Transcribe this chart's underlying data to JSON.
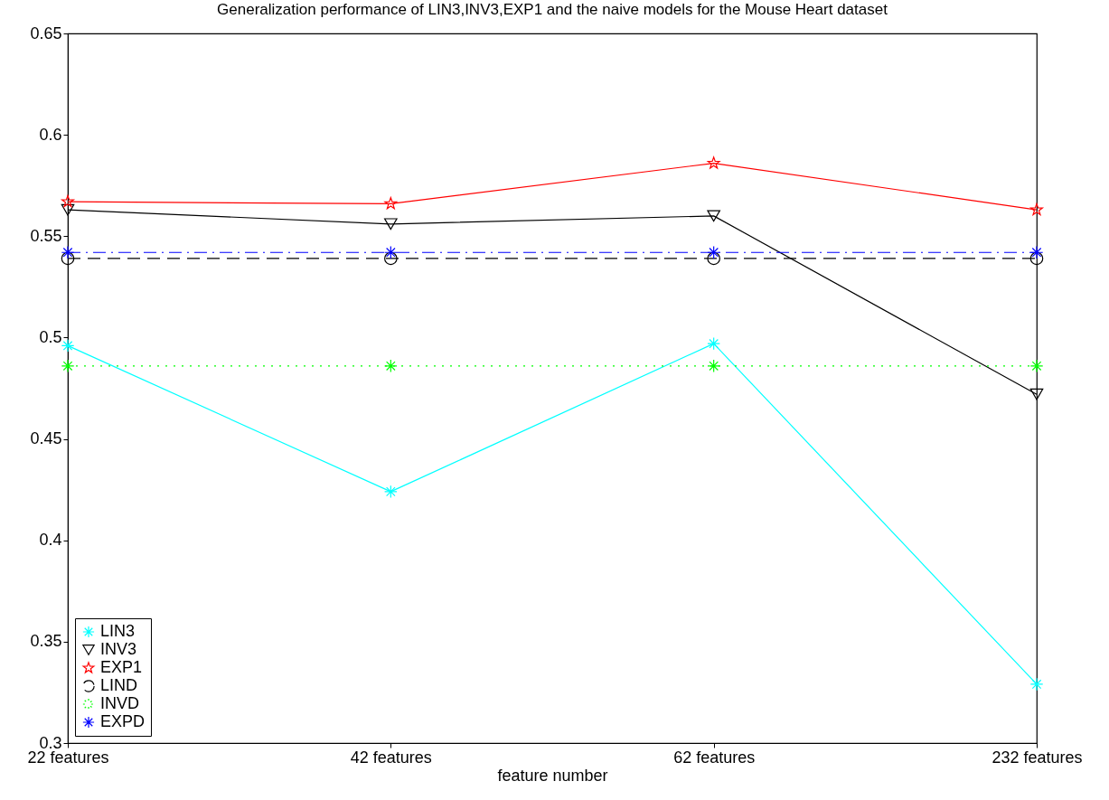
{
  "chart_data": {
    "type": "line",
    "title": "Generalization performance of LIN3,INV3,EXP1 and the naive models for the Mouse Heart dataset",
    "xlabel": "feature number",
    "categories": [
      "22 features",
      "42 features",
      "62 features",
      "232 features"
    ],
    "series": [
      {
        "name": "LIN3",
        "color": "#00ffff",
        "marker": "cross",
        "line_style": "solid",
        "values": [
          0.496,
          0.424,
          0.497,
          0.329
        ]
      },
      {
        "name": "INV3",
        "color": "#000000",
        "marker": "triangle",
        "line_style": "solid",
        "values": [
          0.563,
          0.556,
          0.56,
          0.472
        ]
      },
      {
        "name": "EXP1",
        "color": "#ff0000",
        "marker": "star",
        "line_style": "solid",
        "values": [
          0.567,
          0.566,
          0.586,
          0.563
        ]
      },
      {
        "name": "LIND",
        "color": "#000000",
        "marker": "circle",
        "line_style": "dashed",
        "values": [
          0.539,
          0.539,
          0.539,
          0.539
        ]
      },
      {
        "name": "INVD",
        "color": "#00ff00",
        "marker": "cross",
        "line_style": "dotted",
        "values": [
          0.486,
          0.486,
          0.486,
          0.486
        ]
      },
      {
        "name": "EXPD",
        "color": "#0000ff",
        "marker": "cross",
        "line_style": "dashdot",
        "values": [
          0.542,
          0.542,
          0.542,
          0.542
        ]
      }
    ],
    "ylim": [
      0.3,
      0.65
    ],
    "yticks": [
      0.3,
      0.35,
      0.4,
      0.45,
      0.5,
      0.55,
      0.6,
      0.65
    ],
    "grid": false,
    "legend": "bottom left"
  }
}
